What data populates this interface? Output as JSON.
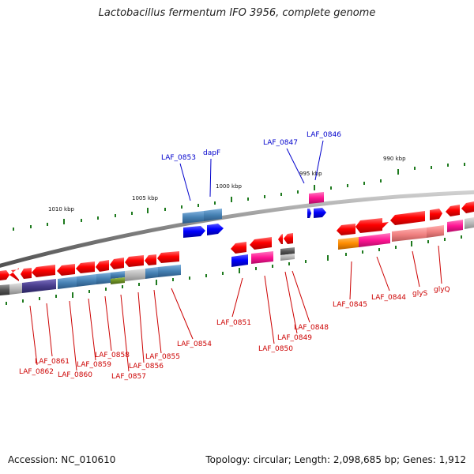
{
  "title": "Lactobacillus fermentum IFO 3956, complete genome",
  "footer": {
    "accession": "Accession: NC_010610",
    "summary": "Topology: circular; Length: 2,098,685 bp; Genes: 1,912"
  },
  "scale_labels": [
    "1010 kbp",
    "1005 kbp",
    "1000 kbp",
    "995 kbp",
    "990 kbp"
  ],
  "blue_labels": [
    "LAF_0853",
    "dapF",
    "LAF_0847",
    "LAF_0846"
  ],
  "red_labels": [
    "LAF_0862",
    "LAF_0861",
    "LAF_0860",
    "LAF_0859",
    "LAF_0858",
    "LAF_0857",
    "LAF_0856",
    "LAF_0855",
    "LAF_0854",
    "LAF_0851",
    "LAF_0850",
    "LAF_0849",
    "LAF_0848",
    "LAF_0845",
    "LAF_0844",
    "glyS",
    "glyQ"
  ],
  "colors": {
    "gene_forward": "#ff0000",
    "gene_reverse_blue": "#0000ff",
    "backbone": "#808080",
    "cog_steelblue": "#4682b4",
    "cog_pink": "#ff1493",
    "cog_orange": "#ff8c00",
    "cog_salmon": "#f08080",
    "cog_purple": "#483d8b",
    "cog_olive": "#6b8e23",
    "cog_gray": "#a9a9a9",
    "cog_dimgray": "#555555",
    "tick": "#1e7a1e",
    "label_red": "#cc0000",
    "label_blue": "#0000cc"
  }
}
